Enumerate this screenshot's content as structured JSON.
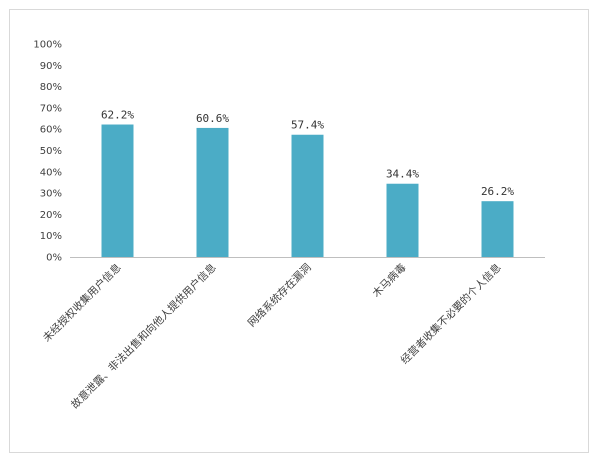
{
  "chart_data": {
    "type": "bar",
    "categories": [
      "未经授权收集用户信息",
      "故意泄露、非法出售和向他人提供用户信息",
      "网络系统存在漏洞",
      "木马病毒",
      "经营者收集不必要的个人信息"
    ],
    "values": [
      62.2,
      60.6,
      57.4,
      34.4,
      26.2
    ],
    "data_labels": [
      "62.2%",
      "60.6%",
      "57.4%",
      "34.4%",
      "26.2%"
    ],
    "ylim": [
      0,
      100
    ],
    "y_ticks": [
      "0%",
      "10%",
      "20%",
      "30%",
      "40%",
      "50%",
      "60%",
      "70%",
      "80%",
      "90%",
      "100%"
    ],
    "title": "",
    "xlabel": "",
    "ylabel": "",
    "grid": false,
    "legend": "none",
    "bar_color": "#4bacc6"
  }
}
